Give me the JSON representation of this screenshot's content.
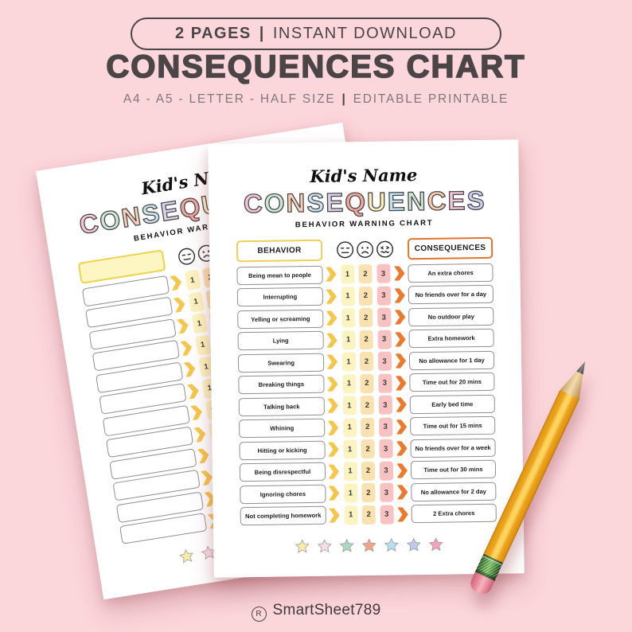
{
  "header": {
    "badge": {
      "pages": "2  PAGES",
      "separator": "|",
      "download": "INSTANT DOWNLOAD"
    },
    "title": "CONSEQUENCES CHART",
    "subtitle": {
      "sizes": "A4 - A5 - LETTER - HALF SIZE",
      "separator": "|",
      "editable": "EDITABLE PRINTABLE"
    }
  },
  "document": {
    "kids_name": "Kid's Name",
    "title_letters": [
      {
        "char": "C",
        "color": "#f6c6da"
      },
      {
        "char": "O",
        "color": "#cbe9d4"
      },
      {
        "char": "N",
        "color": "#f8d2b8"
      },
      {
        "char": "S",
        "color": "#c8e4f4"
      },
      {
        "char": "E",
        "color": "#dbd4f0"
      },
      {
        "char": "Q",
        "color": "#f2a79c"
      },
      {
        "char": "U",
        "color": "#faf1bb"
      },
      {
        "char": "E",
        "color": "#bfe1f0"
      },
      {
        "char": "N",
        "color": "#cbe9d4"
      },
      {
        "char": "C",
        "color": "#f4cbb0"
      },
      {
        "char": "E",
        "color": "#f6c6da"
      },
      {
        "char": "S",
        "color": "#c9d2f0"
      }
    ],
    "chart_subtitle": "BEHAVIOR WARNING CHART",
    "behavior_header": "BEHAVIOR",
    "consequences_header": "CONSEQUENCES",
    "warning_faces": [
      "neutral-face",
      "sad-face",
      "grimace-face"
    ],
    "warning_levels": [
      "1",
      "2",
      "3"
    ],
    "level_colors": [
      "#fcf4c0",
      "#f9e2af",
      "#f8c2c2"
    ],
    "rows": [
      {
        "behavior": "Being mean to people",
        "consequence": "An extra chores"
      },
      {
        "behavior": "Interrupting",
        "consequence": "No friends over for a day"
      },
      {
        "behavior": "Yelling or screaming",
        "consequence": "No outdoor play"
      },
      {
        "behavior": "Lying",
        "consequence": "Extra homework"
      },
      {
        "behavior": "Swearing",
        "consequence": "No allowance for 1 day"
      },
      {
        "behavior": "Breaking things",
        "consequence": "Time out for 20 mins"
      },
      {
        "behavior": "Talking back",
        "consequence": "Early bed time"
      },
      {
        "behavior": "Whining",
        "consequence": "Time out for 15 mins"
      },
      {
        "behavior": "Hitting or kicking",
        "consequence": "No friends over for a week"
      },
      {
        "behavior": "Being disrespectful",
        "consequence": "Time out for 30 mins"
      },
      {
        "behavior": "Ignoring chores",
        "consequence": "No allowance for 2 day"
      },
      {
        "behavior": "Not completing homework",
        "consequence": "2 Extra chores"
      }
    ],
    "star_colors": [
      "#f8eda6",
      "#f8dde7",
      "#a9dabd",
      "#f2a585",
      "#b5e0f1",
      "#bfcaf1",
      "#f4a4b4"
    ]
  },
  "footer": {
    "registered_mark": "R",
    "brand": "SmartSheet789"
  },
  "colors": {
    "bg": "#fbd6db",
    "ink": "#4b4547",
    "sub-ink": "#7e787b",
    "row-border": "#8f8f8f",
    "behavior-border": "#f2ce56",
    "conseq-border": "#e0752e",
    "chev-yellow": "#f6c64a",
    "chev-orange": "#eb7a2c",
    "blank-fill": "#fdf6c3",
    "blank-border": "#ecd24d"
  }
}
